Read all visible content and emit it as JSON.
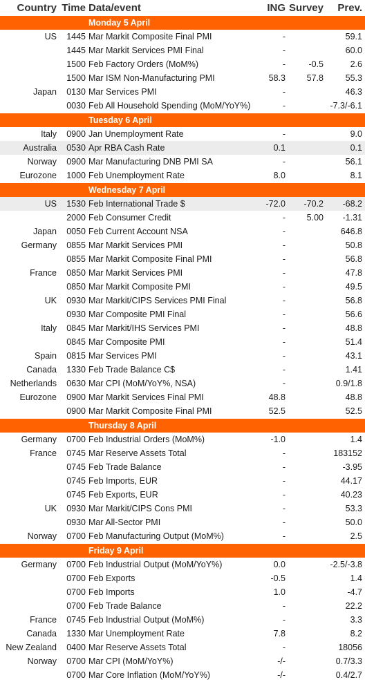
{
  "headers": {
    "country": "Country",
    "time": "Time",
    "event": "Data/event",
    "ing": "ING",
    "survey": "Survey",
    "prev": "Prev."
  },
  "colors": {
    "accent": "#ff6200",
    "row_alt": "#ececec"
  },
  "days": [
    {
      "label": "Monday 5 April",
      "rows": [
        {
          "country": "US",
          "time": "1445",
          "event": "Mar Markit Composite Final PMI",
          "ing": "-",
          "survey": "",
          "prev": "59.1"
        },
        {
          "country": "",
          "time": "1445",
          "event": "Mar Markit Services PMI Final",
          "ing": "-",
          "survey": "",
          "prev": "60.0"
        },
        {
          "country": "",
          "time": "1500",
          "event": "Feb Factory Orders (MoM%)",
          "ing": "-",
          "survey": "-0.5",
          "prev": "2.6"
        },
        {
          "country": "",
          "time": "1500",
          "event": "Mar ISM Non-Manufacturing PMI",
          "ing": "58.3",
          "survey": "57.8",
          "prev": "55.3"
        },
        {
          "country": "Japan",
          "time": "0130",
          "event": "Mar Services PMI",
          "ing": "-",
          "survey": "",
          "prev": "46.3"
        },
        {
          "country": "",
          "time": "0030",
          "event": "Feb All Household Spending (MoM/YoY%)",
          "ing": "-",
          "survey": "",
          "prev": "-7.3/-6.1"
        }
      ]
    },
    {
      "label": "Tuesday 6 April",
      "rows": [
        {
          "country": "Italy",
          "time": "0900",
          "event": "Jan Unemployment Rate",
          "ing": "-",
          "survey": "",
          "prev": "9.0"
        },
        {
          "country": "Australia",
          "time": "0530",
          "event": "Apr RBA Cash Rate",
          "ing": "0.1",
          "survey": "",
          "prev": "0.1",
          "alt": true
        },
        {
          "country": "Norway",
          "time": "0900",
          "event": "Mar Manufacturing DNB PMI SA",
          "ing": "-",
          "survey": "",
          "prev": "56.1"
        },
        {
          "country": "Eurozone",
          "time": "1000",
          "event": "Feb Unemployment Rate",
          "ing": "8.0",
          "survey": "",
          "prev": "8.1"
        }
      ]
    },
    {
      "label": "Wednesday 7 April",
      "rows": [
        {
          "country": "US",
          "time": "1530",
          "event": "Feb International Trade $",
          "ing": "-72.0",
          "survey": "-70.2",
          "prev": "-68.2",
          "alt": true
        },
        {
          "country": "",
          "time": "2000",
          "event": "Feb Consumer Credit",
          "ing": "-",
          "survey": "5.00",
          "prev": "-1.31"
        },
        {
          "country": "Japan",
          "time": "0050",
          "event": "Feb Current Account NSA",
          "ing": "-",
          "survey": "",
          "prev": "646.8"
        },
        {
          "country": "Germany",
          "time": "0855",
          "event": "Mar Markit Services PMI",
          "ing": "-",
          "survey": "",
          "prev": "50.8"
        },
        {
          "country": "",
          "time": "0855",
          "event": "Mar Markit Composite Final PMI",
          "ing": "-",
          "survey": "",
          "prev": "56.8"
        },
        {
          "country": "France",
          "time": "0850",
          "event": "Mar Markit Services PMI",
          "ing": "-",
          "survey": "",
          "prev": "47.8"
        },
        {
          "country": "",
          "time": "0850",
          "event": "Mar Markit Composite PMI",
          "ing": "-",
          "survey": "",
          "prev": "49.5"
        },
        {
          "country": "UK",
          "time": "0930",
          "event": "Mar Markit/CIPS Services PMI Final",
          "ing": "-",
          "survey": "",
          "prev": "56.8"
        },
        {
          "country": "",
          "time": "0930",
          "event": "Mar Composite PMI Final",
          "ing": "-",
          "survey": "",
          "prev": "56.6"
        },
        {
          "country": "Italy",
          "time": "0845",
          "event": "Mar Markit/IHS Services PMI",
          "ing": "-",
          "survey": "",
          "prev": "48.8"
        },
        {
          "country": "",
          "time": "0845",
          "event": "Mar Composite PMI",
          "ing": "-",
          "survey": "",
          "prev": "51.4"
        },
        {
          "country": "Spain",
          "time": "0815",
          "event": "Mar Services PMI",
          "ing": "-",
          "survey": "",
          "prev": "43.1"
        },
        {
          "country": "Canada",
          "time": "1330",
          "event": "Feb Trade Balance C$",
          "ing": "-",
          "survey": "",
          "prev": "1.41"
        },
        {
          "country": "Netherlands",
          "time": "0630",
          "event": "Mar CPI (MoM/YoY%, NSA)",
          "ing": "-",
          "survey": "",
          "prev": "0.9/1.8"
        },
        {
          "country": "Eurozone",
          "time": "0900",
          "event": "Mar Markit Services Final PMI",
          "ing": "48.8",
          "survey": "",
          "prev": "48.8"
        },
        {
          "country": "",
          "time": "0900",
          "event": "Mar Markit Composite Final PMI",
          "ing": "52.5",
          "survey": "",
          "prev": "52.5"
        }
      ]
    },
    {
      "label": "Thursday 8 April",
      "rows": [
        {
          "country": "Germany",
          "time": "0700",
          "event": "Feb Industrial Orders (MoM%)",
          "ing": "-1.0",
          "survey": "",
          "prev": "1.4"
        },
        {
          "country": "France",
          "time": "0745",
          "event": "Mar Reserve Assets Total",
          "ing": "-",
          "survey": "",
          "prev": "183152"
        },
        {
          "country": "",
          "time": "0745",
          "event": "Feb Trade Balance",
          "ing": "-",
          "survey": "",
          "prev": "-3.95"
        },
        {
          "country": "",
          "time": "0745",
          "event": "Feb Imports, EUR",
          "ing": "-",
          "survey": "",
          "prev": "44.17"
        },
        {
          "country": "",
          "time": "0745",
          "event": "Feb Exports, EUR",
          "ing": "-",
          "survey": "",
          "prev": "40.23"
        },
        {
          "country": "UK",
          "time": "0930",
          "event": "Mar Markit/CIPS Cons PMI",
          "ing": "-",
          "survey": "",
          "prev": "53.3"
        },
        {
          "country": "",
          "time": "0930",
          "event": "Mar All-Sector PMI",
          "ing": "-",
          "survey": "",
          "prev": "50.0"
        },
        {
          "country": "Norway",
          "time": "0700",
          "event": "Feb Manufacturing Output (MoM%)",
          "ing": "-",
          "survey": "",
          "prev": "2.5"
        }
      ]
    },
    {
      "label": "Friday 9 April",
      "rows": [
        {
          "country": "Germany",
          "time": "0700",
          "event": "Feb Industrial Output (MoM/YoY%)",
          "ing": "0.0",
          "survey": "",
          "prev": "-2.5/-3.8"
        },
        {
          "country": "",
          "time": "0700",
          "event": "Feb Exports",
          "ing": "-0.5",
          "survey": "",
          "prev": "1.4"
        },
        {
          "country": "",
          "time": "0700",
          "event": "Feb Imports",
          "ing": "1.0",
          "survey": "",
          "prev": "-4.7"
        },
        {
          "country": "",
          "time": "0700",
          "event": "Feb Trade Balance",
          "ing": "-",
          "survey": "",
          "prev": "22.2"
        },
        {
          "country": "France",
          "time": "0745",
          "event": "Feb Industrial Output (MoM%)",
          "ing": "-",
          "survey": "",
          "prev": "3.3"
        },
        {
          "country": "Canada",
          "time": "1330",
          "event": "Mar Unemployment Rate",
          "ing": "7.8",
          "survey": "",
          "prev": "8.2"
        },
        {
          "country": "New Zealand",
          "time": "0400",
          "event": "Mar Reserve Assets Total",
          "ing": "-",
          "survey": "",
          "prev": "18056"
        },
        {
          "country": "Norway",
          "time": "0700",
          "event": "Mar CPI (MoM/YoY%)",
          "ing": "-/-",
          "survey": "",
          "prev": "0.7/3.3"
        },
        {
          "country": "",
          "time": "0700",
          "event": "Mar Core Inflation (MoM/YoY%)",
          "ing": "-/-",
          "survey": "",
          "prev": "0.4/2.7"
        }
      ]
    }
  ]
}
